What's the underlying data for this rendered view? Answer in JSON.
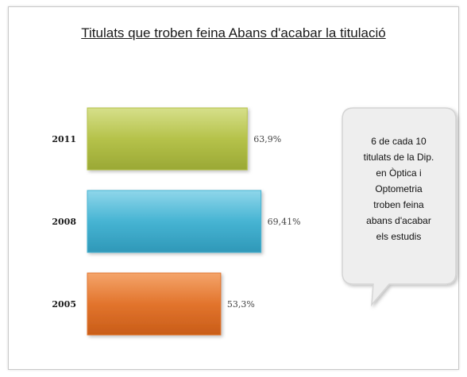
{
  "chart_data": {
    "type": "bar",
    "orientation": "horizontal",
    "title": "Titulats que troben feina Abans d'acabar la titulació",
    "categories": [
      "2011",
      "2008",
      "2005"
    ],
    "values": [
      63.9,
      69.41,
      53.3
    ],
    "value_labels": [
      "63,9%",
      "69,41%",
      "53,3%"
    ],
    "colors": [
      "#b5c24a",
      "#46b4d3",
      "#e2742d"
    ],
    "xlim": [
      0,
      100
    ],
    "grid": false,
    "legend": "none"
  },
  "callout": {
    "lines": [
      "6 de cada 10",
      "titulats de la  Dip.",
      "en Òptica i",
      "Optometria",
      "troben feina",
      "abans d'acabar",
      "els estudis"
    ]
  }
}
